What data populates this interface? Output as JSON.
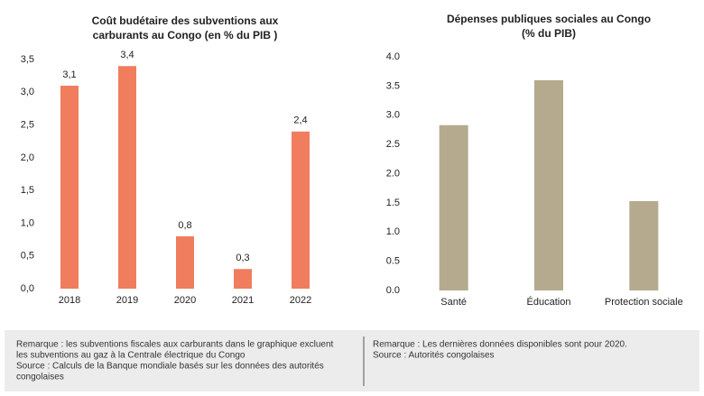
{
  "chart_data": [
    {
      "type": "bar",
      "title": [
        "Coût budétaire des subventions aux",
        "carburants au Congo (en % du PIB )"
      ],
      "categories": [
        "2018",
        "2019",
        "2020",
        "2021",
        "2022"
      ],
      "values": [
        3.1,
        3.4,
        0.8,
        0.3,
        2.4
      ],
      "value_labels": [
        "3,1",
        "3,4",
        "0,8",
        "0,3",
        "2,4"
      ],
      "color": "#f07d5d",
      "ylim": [
        0,
        3.5
      ],
      "yticks": [
        {
          "value": 0,
          "label": "0,0"
        },
        {
          "value": 0.5,
          "label": "0,5"
        },
        {
          "value": 1,
          "label": "1,0"
        },
        {
          "value": 1.5,
          "label": "1,5"
        },
        {
          "value": 2,
          "label": "2,0"
        },
        {
          "value": 2.5,
          "label": "2,5"
        },
        {
          "value": 3,
          "label": "3,0"
        },
        {
          "value": 3.5,
          "label": "3,5"
        }
      ]
    },
    {
      "type": "bar",
      "title": [
        "Dépenses publiques sociales au Congo",
        "(% du PIB)"
      ],
      "categories": [
        "Santé",
        "Éducation",
        "Protection sociale"
      ],
      "values": [
        2.83,
        3.6,
        1.53
      ],
      "color": "#b5aa8d",
      "ylim": [
        0,
        4
      ],
      "yticks": [
        {
          "value": 0,
          "label": "0.0"
        },
        0.5,
        {
          "value": 1,
          "label": "1.0"
        },
        1.5,
        {
          "value": 2,
          "label": "2.0"
        },
        2.5,
        {
          "value": 3,
          "label": "3.0"
        },
        3.5,
        {
          "value": 4,
          "label": "4.0"
        }
      ]
    }
  ],
  "notes": [
    [
      "Remarque : les subventions fiscales aux carburants dans le graphique excluent",
      "les subventions au gaz à la Centrale électrique du Congo",
      "Source : Calculs de la Banque mondiale basés sur les données des autorités",
      "congolaises"
    ],
    [
      "Remarque : Les dernières données disponibles sont pour 2020.",
      "Source : Autorités congolaises"
    ]
  ]
}
